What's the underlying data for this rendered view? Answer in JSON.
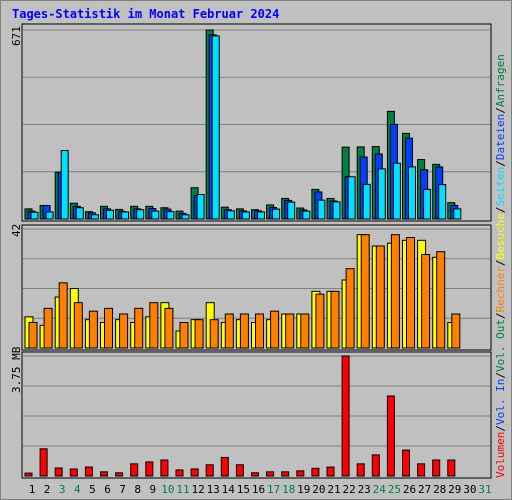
{
  "title": "Tages-Statistik im Monat Februar 2024",
  "colors": {
    "anfragen": "#008040",
    "dateien": "#0040ff",
    "seiten": "#00e0ff",
    "besuche": "#ffff00",
    "rechner": "#ff8000",
    "volume": "#ff0000",
    "weekend_label": "#008040",
    "background": "#c0c0c0"
  },
  "legend_right": {
    "sep": "/",
    "volumen": "Volumen",
    "vol_in": "Vol. In",
    "vol_out": "Vol. Out",
    "rechner": "Rechner",
    "besuche": "Besuche",
    "seiten": "Seiten",
    "dateien": "Dateien",
    "anfragen": "Anfragen"
  },
  "chart_data": [
    {
      "type": "bar",
      "panel": "top",
      "ymax_label": "671",
      "ylim": [
        0,
        671
      ],
      "categories": [
        "1",
        "2",
        "3",
        "4",
        "5",
        "6",
        "7",
        "8",
        "9",
        "10",
        "11",
        "12",
        "13",
        "14",
        "15",
        "16",
        "17",
        "18",
        "19",
        "20",
        "21",
        "22",
        "23",
        "24",
        "25",
        "26",
        "27",
        "28",
        "29",
        "30",
        "31"
      ],
      "weekend_days": [
        "3",
        "4",
        "10",
        "11",
        "17",
        "18",
        "24",
        "25",
        "31"
      ],
      "series": [
        {
          "name": "Anfragen",
          "values": [
            36,
            48,
            166,
            56,
            26,
            45,
            34,
            45,
            45,
            40,
            28,
            111,
            671,
            42,
            36,
            33,
            50,
            73,
            39,
            105,
            73,
            255,
            256,
            257,
            382,
            304,
            211,
            194,
            58,
            null,
            null
          ]
        },
        {
          "name": "Dateien",
          "values": [
            28,
            48,
            166,
            45,
            22,
            36,
            27,
            36,
            37,
            35,
            20,
            83,
            654,
            33,
            29,
            29,
            41,
            66,
            32,
            96,
            64,
            150,
            220,
            231,
            336,
            287,
            175,
            185,
            48,
            null,
            null
          ]
        },
        {
          "name": "Seiten",
          "values": [
            24,
            25,
            243,
            40,
            15,
            31,
            25,
            33,
            28,
            26,
            15,
            87,
            650,
            29,
            25,
            25,
            35,
            60,
            28,
            67,
            61,
            150,
            123,
            178,
            198,
            185,
            105,
            122,
            36,
            null,
            null
          ]
        }
      ]
    },
    {
      "type": "bar",
      "panel": "middle",
      "ymax_label": "42",
      "ylim": [
        0,
        42
      ],
      "categories": [
        "1",
        "2",
        "3",
        "4",
        "5",
        "6",
        "7",
        "8",
        "9",
        "10",
        "11",
        "12",
        "13",
        "14",
        "15",
        "16",
        "17",
        "18",
        "19",
        "20",
        "21",
        "22",
        "23",
        "24",
        "25",
        "26",
        "27",
        "28",
        "29",
        "30",
        "31"
      ],
      "series": [
        {
          "name": "Besuche",
          "values": [
            11,
            8,
            18,
            21,
            10,
            9,
            10,
            9,
            11,
            16,
            6,
            10,
            16,
            9,
            10,
            9,
            10,
            12,
            12,
            20,
            20,
            24,
            40,
            36,
            37,
            38,
            38,
            32,
            9,
            null,
            null
          ]
        },
        {
          "name": "Rechner",
          "values": [
            9,
            14,
            23,
            16,
            13,
            14,
            12,
            14,
            16,
            14,
            9,
            10,
            10,
            12,
            12,
            12,
            13,
            12,
            12,
            19,
            20,
            28,
            40,
            36,
            40,
            39,
            33,
            34,
            12,
            null,
            null
          ]
        }
      ]
    },
    {
      "type": "bar",
      "panel": "bottom",
      "ymax_label": "3.75 MB",
      "ylim": [
        0,
        3.75
      ],
      "categories": [
        "1",
        "2",
        "3",
        "4",
        "5",
        "6",
        "7",
        "8",
        "9",
        "10",
        "11",
        "12",
        "13",
        "14",
        "15",
        "16",
        "17",
        "18",
        "19",
        "20",
        "21",
        "22",
        "23",
        "24",
        "25",
        "26",
        "27",
        "28",
        "29",
        "30",
        "31"
      ],
      "series": [
        {
          "name": "Volumen",
          "values": [
            0.09,
            0.85,
            0.25,
            0.22,
            0.28,
            0.13,
            0.1,
            0.38,
            0.44,
            0.5,
            0.19,
            0.22,
            0.35,
            0.58,
            0.35,
            0.1,
            0.13,
            0.13,
            0.16,
            0.24,
            0.28,
            3.75,
            0.38,
            0.66,
            2.5,
            0.81,
            0.38,
            0.5,
            0.5,
            null,
            null
          ]
        }
      ]
    }
  ]
}
